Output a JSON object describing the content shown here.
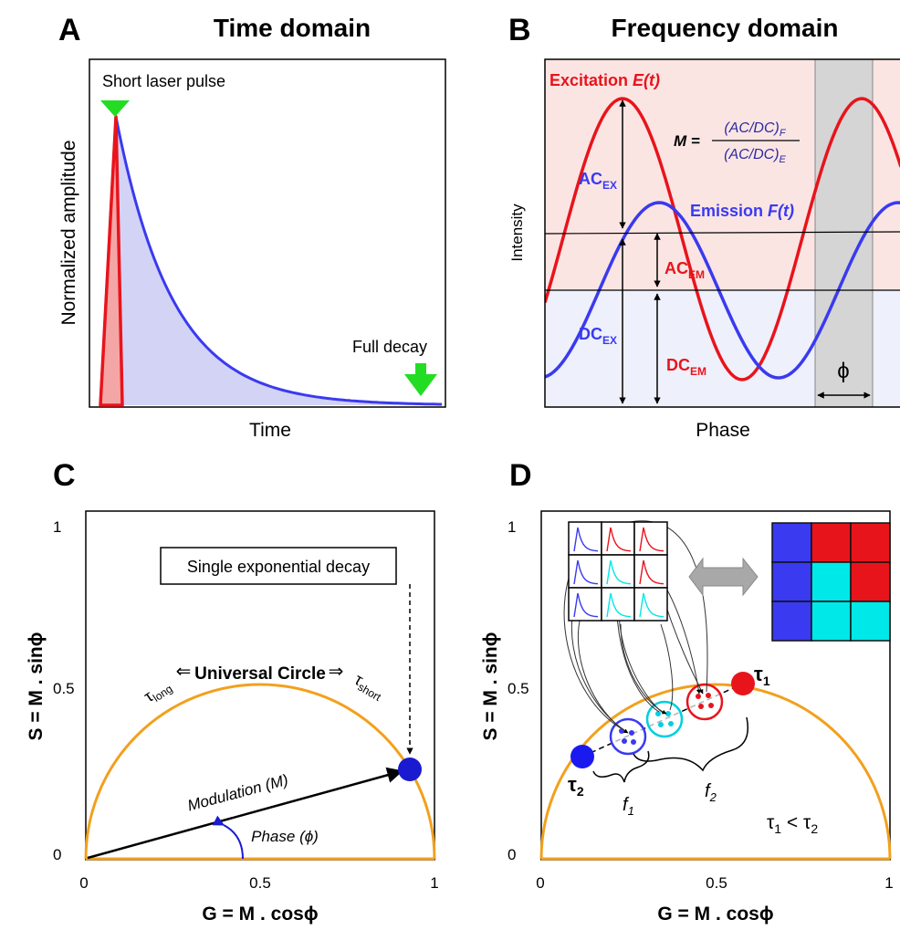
{
  "panels": {
    "A": {
      "letter": "A",
      "title": "Time domain",
      "annotation_top": "Short laser pulse",
      "annotation_bottom": "Full decay",
      "xlabel": "Time",
      "ylabel": "Normalized amplitude"
    },
    "B": {
      "letter": "B",
      "title": "Frequency domain",
      "excitation_label": "Excitation",
      "excitation_symbol": "E(t)",
      "emission_label": "Emission",
      "emission_symbol": "F(t)",
      "ac_ex": {
        "main": "AC",
        "sub": "EX"
      },
      "ac_em": {
        "main": "AC",
        "sub": "EM"
      },
      "dc_ex": {
        "main": "DC",
        "sub": "EX"
      },
      "dc_em": {
        "main": "DC",
        "sub": "EM"
      },
      "modulation_formula": {
        "lhs": "M =",
        "numerator": "(AC/DC)",
        "numerator_sub": "F",
        "denominator": "(AC/DC)",
        "denominator_sub": "E"
      },
      "phase_symbol": "ϕ",
      "xlabel": "Phase",
      "ylabel": "Intensity",
      "colors": {
        "excitation": "#e8141c",
        "emission": "#3a3af0"
      }
    },
    "C": {
      "letter": "C",
      "box_label": "Single exponential decay",
      "circle_label": "Universal Circle",
      "tau_long": {
        "symbol": "τ",
        "sub": "long"
      },
      "tau_short": {
        "symbol": "τ",
        "sub": "short"
      },
      "modulation_label": "Modulation (M)",
      "phase_label": "Phase (ϕ)",
      "xlabel": "G = M . cosϕ",
      "ylabel": "S = M . sinϕ",
      "xticks": [
        "0",
        "0.5",
        "1"
      ],
      "yticks": [
        "0",
        "0.5",
        "1"
      ]
    },
    "D": {
      "letter": "D",
      "tau1": {
        "symbol": "τ",
        "sub": "1"
      },
      "tau2": {
        "symbol": "τ",
        "sub": "2"
      },
      "f1": {
        "symbol": "f",
        "sub": "1"
      },
      "f2": {
        "symbol": "f",
        "sub": "2"
      },
      "relation": {
        "a": "τ",
        "a_sub": "1",
        "op": " < ",
        "b": "τ",
        "b_sub": "2"
      },
      "xlabel": "G = M . cosϕ",
      "ylabel": "S = M . sinϕ",
      "xticks": [
        "0",
        "0.5",
        "1"
      ],
      "yticks": [
        "0",
        "0.5",
        "1"
      ],
      "pixel_grid_colors": [
        [
          "#3a3af0",
          "#e8141c",
          "#e8141c"
        ],
        [
          "#3a3af0",
          "#00e8e8",
          "#e8141c"
        ],
        [
          "#3a3af0",
          "#00e8e8",
          "#00e8e8"
        ]
      ],
      "colors": {
        "circle": "#f2a01d",
        "tau1": "#e8141c",
        "tau2": "#1a1af0",
        "mix": "#00cfe0"
      }
    }
  }
}
